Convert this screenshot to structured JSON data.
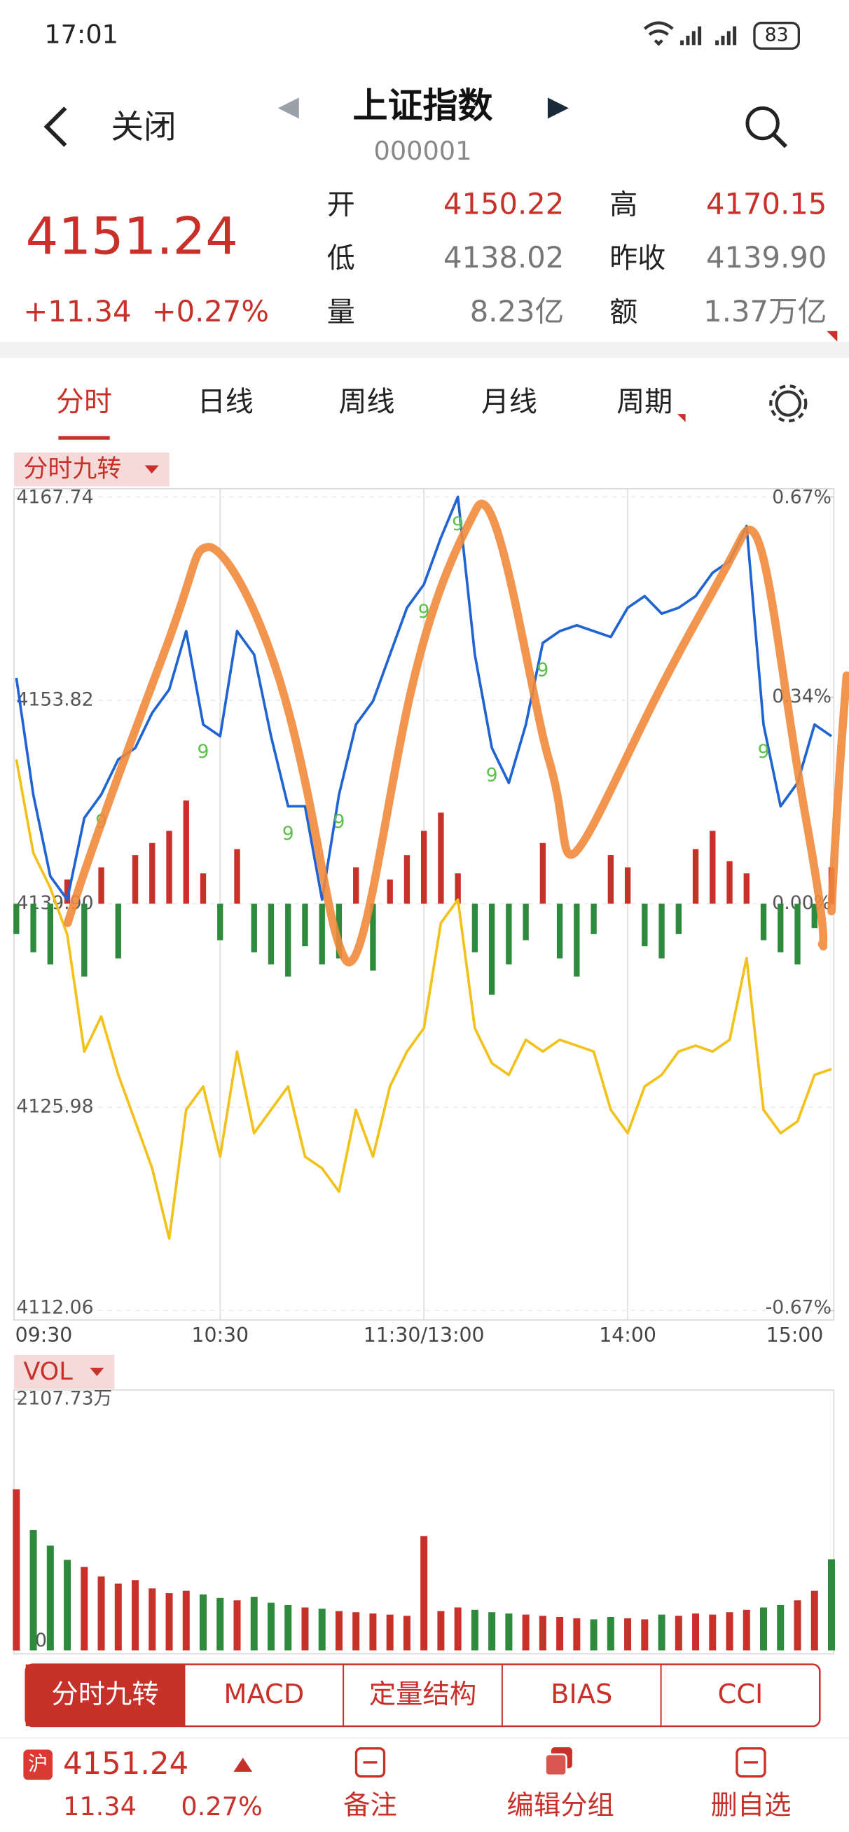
{
  "status_bar": {
    "time": "17:01",
    "battery": "83"
  },
  "header": {
    "back": "关闭",
    "title": "上证指数",
    "code": "000001"
  },
  "quote": {
    "price": "4151.24",
    "change": "+11.34",
    "change_pct": "+0.27%",
    "fields": [
      {
        "label": "开",
        "value": "4150.22",
        "color": "#c8302a"
      },
      {
        "label": "低",
        "value": "4138.02",
        "color": "#777777"
      },
      {
        "label": "量",
        "value": "8.23亿",
        "color": "#777777"
      },
      {
        "label": "高",
        "value": "4170.15",
        "color": "#c8302a"
      },
      {
        "label": "昨收",
        "value": "4139.90",
        "color": "#777777"
      },
      {
        "label": "额",
        "value": "1.37万亿",
        "color": "#777777"
      }
    ]
  },
  "tabs": [
    "分时",
    "日线",
    "周线",
    "月线",
    "周期"
  ],
  "chart_data": [
    {
      "type": "line",
      "indicator": "分时九转",
      "x": [
        0,
        5,
        10,
        15,
        20,
        25,
        30,
        35,
        40,
        45,
        50,
        55,
        60,
        65,
        70,
        75,
        80,
        85,
        90,
        95,
        100,
        105,
        110,
        115,
        120,
        125,
        130,
        135,
        140,
        145,
        150,
        155,
        160,
        165,
        170,
        175,
        180,
        185,
        190,
        195,
        200,
        205,
        210,
        215,
        220,
        225,
        230,
        235,
        240
      ],
      "xlim": [
        0,
        240
      ],
      "xticks": [
        {
          "value": 0,
          "label": "09:30"
        },
        {
          "value": 60,
          "label": "10:30"
        },
        {
          "value": 120,
          "label": "11:30/13:00"
        },
        {
          "value": 180,
          "label": "14:00"
        },
        {
          "value": 240,
          "label": "15:00"
        }
      ],
      "ylim": [
        4112.06,
        4167.74
      ],
      "yticks": [
        4167.74,
        4153.82,
        {
          "value": 4139.9,
          "label": "4139.90"
        },
        4125.98,
        4112.06
      ],
      "y2lim": [
        -0.67,
        0.67
      ],
      "y2ticks": [
        {
          "value": 0.67,
          "label": "0.67%"
        },
        {
          "value": 0.34,
          "label": "0.34%"
        },
        {
          "value": 0,
          "label": "0.00%"
        },
        {
          "value": -0.67,
          "label": "-0.67%"
        }
      ],
      "series": [
        {
          "color": "#1f64d2",
          "values": [
            4155.36,
            4147.37,
            4141.78,
            4140.18,
            4145.77,
            4147.37,
            4149.77,
            4150.56,
            4152.96,
            4154.56,
            4158.55,
            4152.16,
            4151.36,
            4158.55,
            4156.95,
            4151.36,
            4146.57,
            4146.57,
            4140.18,
            4147.37,
            4152.16,
            4153.76,
            4156.95,
            4160.15,
            4161.75,
            4164.94,
            4167.74,
            4156.95,
            4150.56,
            4148.17,
            4152.16,
            4157.75,
            4158.55,
            4158.95,
            4158.55,
            4158.15,
            4160.15,
            4160.95,
            4159.75,
            4160.15,
            4160.95,
            4162.55,
            4163.35,
            4165.74,
            4152.16,
            4146.57,
            4148.17,
            4152.16,
            4151.36
          ]
        },
        {
          "color": "#f2c21b",
          "values": [
            4149.77,
            4143.38,
            4140.98,
            4137.78,
            4129.79,
            4132.19,
            4128.19,
            4125.0,
            4121.8,
            4117.0,
            4125.8,
            4127.4,
            4122.6,
            4129.79,
            4124.2,
            4125.8,
            4127.4,
            4122.6,
            4121.8,
            4120.2,
            4125.8,
            4122.6,
            4127.4,
            4129.79,
            4131.39,
            4138.58,
            4140.18,
            4131.39,
            4128.99,
            4128.19,
            4130.59,
            4129.79,
            4130.59,
            4130.19,
            4129.79,
            4125.8,
            4124.2,
            4127.4,
            4128.19,
            4129.79,
            4130.19,
            4129.79,
            4130.59,
            4136.18,
            4125.8,
            4124.2,
            4125.0,
            4128.19,
            4128.59
          ]
        }
      ],
      "bars": {
        "axis": "y2",
        "values": [
          -0.05,
          -0.08,
          -0.1,
          0.04,
          -0.12,
          0.06,
          -0.09,
          0.08,
          0.1,
          0.12,
          0.17,
          0.05,
          -0.06,
          0.09,
          -0.08,
          -0.1,
          -0.12,
          -0.07,
          -0.1,
          -0.09,
          0.06,
          -0.11,
          0.04,
          0.08,
          0.12,
          0.15,
          0.05,
          -0.08,
          -0.15,
          -0.1,
          -0.06,
          0.1,
          -0.09,
          -0.12,
          -0.05,
          0.08,
          0.06,
          -0.07,
          -0.09,
          -0.05,
          0.09,
          0.12,
          0.07,
          0.05,
          -0.06,
          -0.08,
          -0.1,
          -0.04,
          0.06
        ]
      },
      "up_color": "#c8302a",
      "down_color": "#2e8a3c",
      "signal_label": "9",
      "signal_color": "#5cc04a",
      "signal_x": [
        25,
        55,
        80,
        95,
        120,
        130,
        140,
        155,
        220
      ],
      "grid": true
    },
    {
      "type": "bar",
      "indicator": "VOL",
      "ylim": [
        0,
        2107.73
      ],
      "yticks": [
        0,
        {
          "value": 2107.73,
          "label": "2107.73万"
        }
      ],
      "values": [
        1353,
        1010,
        880,
        760,
        700,
        620,
        560,
        590,
        520,
        480,
        500,
        470,
        440,
        420,
        450,
        400,
        380,
        360,
        350,
        330,
        320,
        310,
        300,
        290,
        960,
        330,
        360,
        340,
        320,
        310,
        300,
        290,
        280,
        270,
        260,
        280,
        270,
        260,
        300,
        290,
        310,
        300,
        320,
        340,
        360,
        380,
        420,
        500,
        765
      ],
      "up_color": "#c8302a",
      "down_color": "#2e8a3c"
    }
  ],
  "indicator_tabs": [
    "分时九转",
    "MACD",
    "定量结构",
    "BIAS",
    "CCI"
  ],
  "footer": {
    "badge": "沪",
    "price": "4151.24",
    "change": "11.34",
    "change_pct": "0.27%",
    "actions": [
      "备注",
      "编辑分组",
      "删自选"
    ]
  }
}
